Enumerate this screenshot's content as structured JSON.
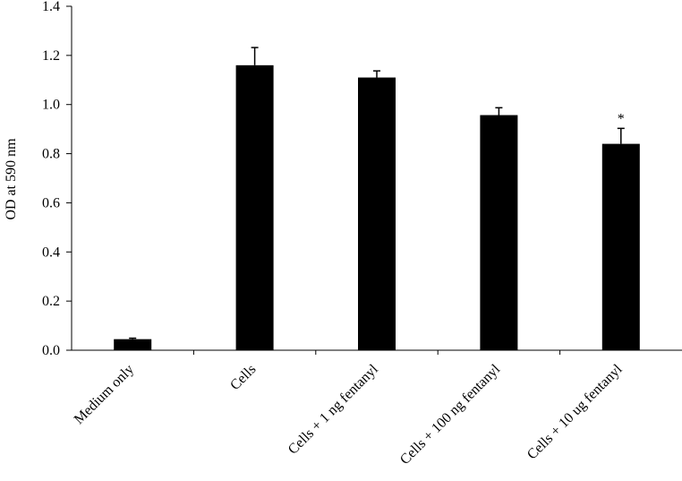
{
  "chart_data": {
    "type": "bar",
    "title": "",
    "xlabel": "",
    "ylabel": "OD at 590 nm",
    "ylim": [
      0,
      1.4
    ],
    "yticks": [
      "0.0",
      "0.2",
      "0.4",
      "0.6",
      "0.8",
      "1.0",
      "1.2",
      "1.4"
    ],
    "categories": [
      "Medium only",
      "Cells",
      "Cells + 1 ng fentanyl",
      "Cells + 100 ng fentanyl",
      "Cells + 10 ug fentanyl"
    ],
    "values": [
      0.045,
      1.16,
      1.11,
      0.957,
      0.84
    ],
    "errors": [
      0.004,
      0.072,
      0.027,
      0.03,
      0.063
    ],
    "annotations": [
      {
        "category_index": 4,
        "text": "*"
      }
    ],
    "bar_color": "#000000",
    "grid": false,
    "legend": "none"
  }
}
